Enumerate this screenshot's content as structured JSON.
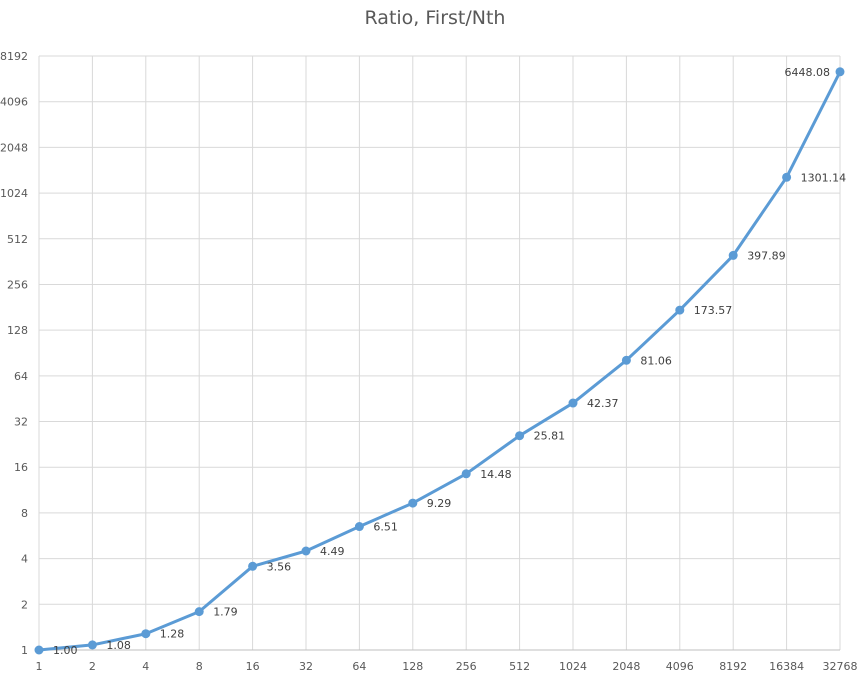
{
  "chart_data": {
    "type": "line",
    "title": "Ratio, First/Nth",
    "xlabel": "",
    "ylabel": "",
    "categories": [
      "1",
      "2",
      "4",
      "8",
      "16",
      "32",
      "64",
      "128",
      "256",
      "512",
      "1024",
      "2048",
      "4096",
      "8192",
      "16384",
      "32768"
    ],
    "values": [
      1.0,
      1.08,
      1.28,
      1.79,
      3.56,
      4.49,
      6.51,
      9.29,
      14.48,
      25.81,
      42.37,
      81.06,
      173.57,
      397.89,
      1301.14,
      6448.08
    ],
    "data_labels": [
      "1.00",
      "1.08",
      "1.28",
      "1.79",
      "3.56",
      "4.49",
      "6.51",
      "9.29",
      "14.48",
      "25.81",
      "42.37",
      "81.06",
      "173.57",
      "397.89",
      "1301.14",
      "6448.08"
    ],
    "y_scale": "log2",
    "ylim": [
      1,
      8192
    ],
    "y_ticks": [
      "1",
      "2",
      "4",
      "8",
      "16",
      "32",
      "64",
      "128",
      "256",
      "512",
      "1024",
      "2048",
      "4096",
      "8192"
    ],
    "grid": true,
    "legend": "none",
    "line_color": "#5B9BD5"
  }
}
